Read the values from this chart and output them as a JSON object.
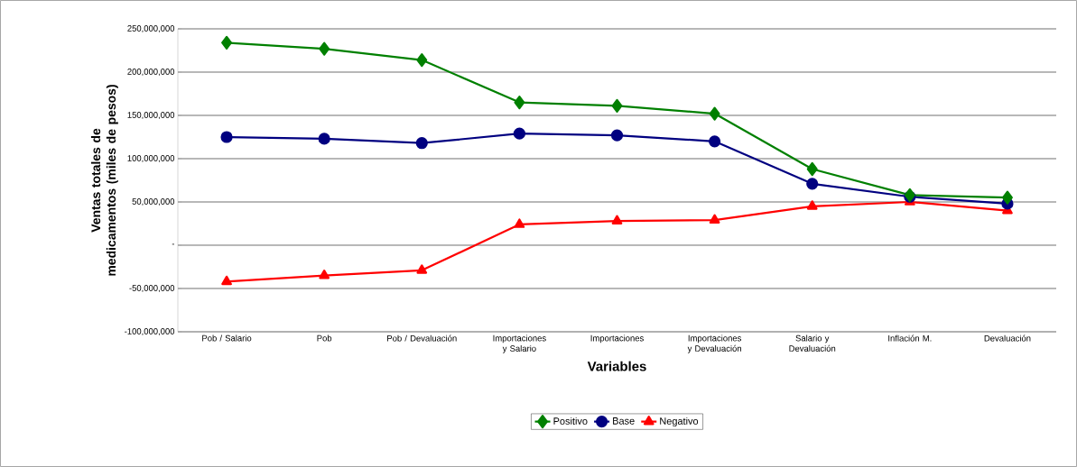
{
  "chart_data": {
    "type": "line",
    "xlabel": "Variables",
    "ylabel": "Ventas totales de medicamentos (miles de pesos)",
    "categories": [
      "Pob / Salario",
      "Pob",
      "Pob / Devaluación",
      "Importaciones y Salario",
      "Importaciones",
      "Importaciones y Devaluación",
      "Salario y Devaluación",
      "Inflación M.",
      "Devaluación"
    ],
    "series": [
      {
        "name": "Positivo",
        "color": "#008000",
        "marker": "diamond",
        "values": [
          234000000,
          227000000,
          214000000,
          165000000,
          161000000,
          152000000,
          88000000,
          58000000,
          55000000
        ]
      },
      {
        "name": "Base",
        "color": "#000080",
        "marker": "circle",
        "values": [
          125000000,
          123000000,
          118000000,
          129000000,
          127000000,
          120000000,
          71000000,
          56000000,
          48000000
        ]
      },
      {
        "name": "Negativo",
        "color": "#ff0000",
        "marker": "triangle",
        "values": [
          -42000000,
          -35000000,
          -29000000,
          24000000,
          28000000,
          29000000,
          45000000,
          50000000,
          40000000
        ]
      }
    ],
    "ylim": [
      -100000000,
      250000000
    ],
    "yticks": [
      {
        "value": -100000000,
        "label": "-100,000,000"
      },
      {
        "value": -50000000,
        "label": "-50,000,000"
      },
      {
        "value": 0,
        "label": "-"
      },
      {
        "value": 50000000,
        "label": "50,000,000"
      },
      {
        "value": 100000000,
        "label": "100,000,000"
      },
      {
        "value": 150000000,
        "label": "150,000,000"
      },
      {
        "value": 200000000,
        "label": "200,000,000"
      },
      {
        "value": 250000000,
        "label": "250,000,000"
      }
    ],
    "grid": "y",
    "legend": "bottom",
    "line_style": "solid"
  }
}
